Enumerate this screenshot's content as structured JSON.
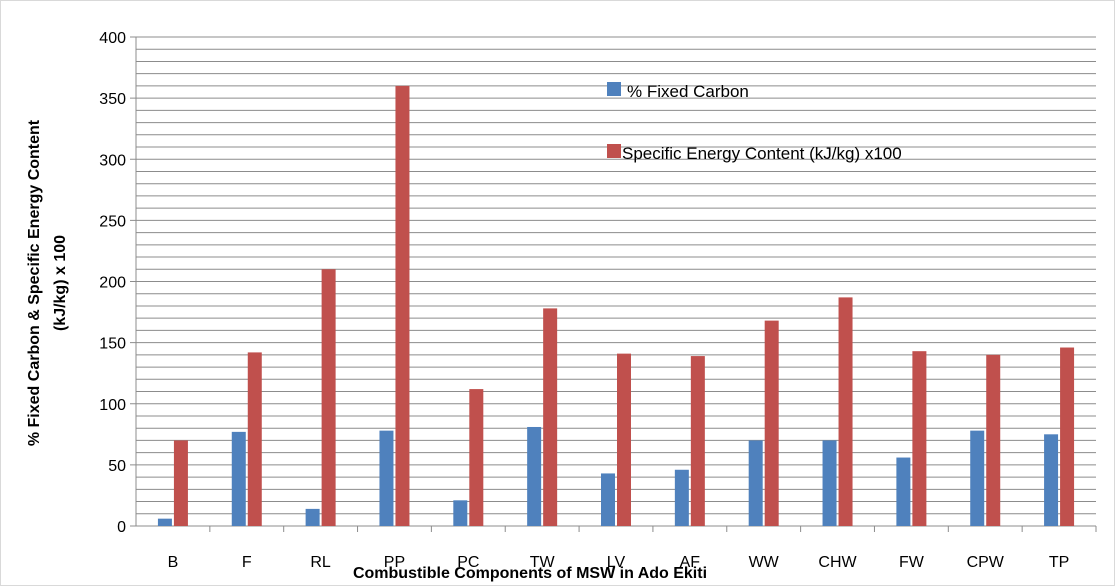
{
  "chart_data": {
    "type": "bar",
    "categories": [
      "B",
      "F",
      "RL",
      "PP",
      "PC",
      "TW",
      "LV",
      "AF",
      "WW",
      "CHW",
      "FW",
      "CPW",
      "TP"
    ],
    "series": [
      {
        "name": "% Fixed Carbon",
        "color": "#4f81bd",
        "values": [
          6,
          77,
          14,
          78,
          21,
          81,
          43,
          46,
          70,
          70,
          56,
          78,
          75
        ]
      },
      {
        "name": "Specific Energy Content (kJ/kg) x100",
        "color": "#c0504d",
        "values": [
          70,
          142,
          210,
          360,
          112,
          178,
          141,
          139,
          168,
          187,
          143,
          140,
          146
        ]
      }
    ],
    "xlabel": "Combustible Components of MSW in Ado Ekiti",
    "ylabel_line1": "% Fixed Carbon  & Specific Energy Content",
    "ylabel_line2": "(kJ/kg) x 100",
    "ylim": [
      0,
      400
    ],
    "yticks": [
      0,
      50,
      100,
      150,
      200,
      250,
      300,
      350,
      400
    ],
    "minor_grid_step": 10,
    "grid": true,
    "legend_position": "upper-right-inside"
  }
}
